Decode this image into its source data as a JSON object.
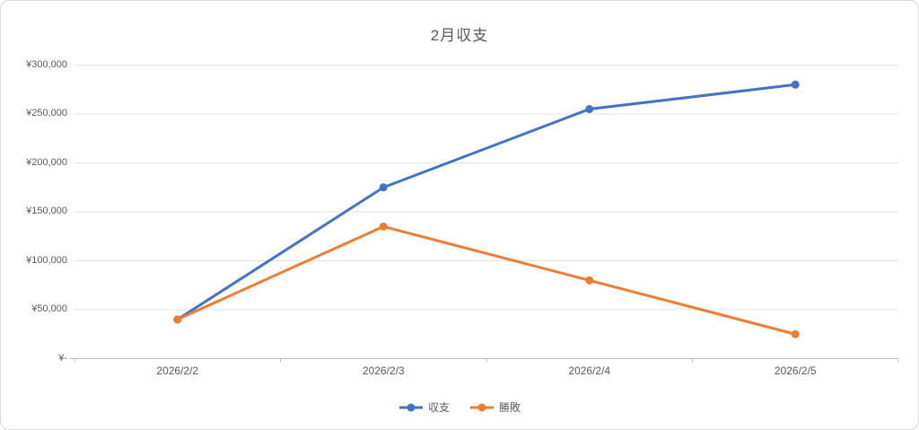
{
  "chart_data": {
    "type": "line",
    "title": "2月収支",
    "categories": [
      "2026/2/2",
      "2026/2/3",
      "2026/2/4",
      "2026/2/5"
    ],
    "series": [
      {
        "name": "収支",
        "color": "#4472C4",
        "values": [
          40000,
          175000,
          255000,
          280000
        ]
      },
      {
        "name": "勝敗",
        "color": "#ED7D31",
        "values": [
          40000,
          135000,
          80000,
          25000
        ]
      }
    ],
    "xlabel": "",
    "ylabel": "",
    "ylim": [
      0,
      300000
    ],
    "y_axis": {
      "min": 0,
      "max": 300000,
      "step": 50000,
      "tick_labels": [
        "¥-",
        "¥50,000",
        "¥100,000",
        "¥150,000",
        "¥200,000",
        "¥250,000",
        "¥300,000"
      ]
    },
    "grid": true,
    "legend_position": "bottom",
    "marker": "circle",
    "style": {
      "text_color": "#595959",
      "gridline_color": "#E3E3E3",
      "axis_color": "#BFBFBF",
      "background": "#FFFFFF"
    }
  }
}
